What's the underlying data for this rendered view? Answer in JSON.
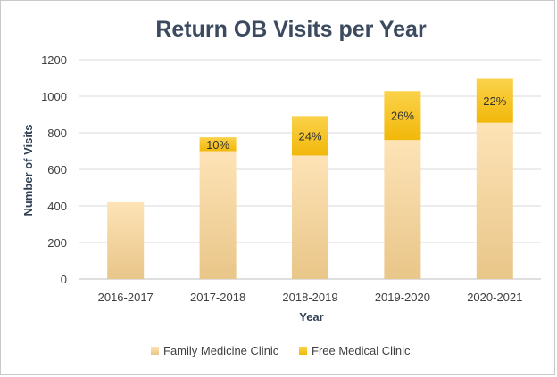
{
  "chart_data": {
    "type": "bar",
    "stacked": true,
    "title": "Return OB Visits per Year",
    "xlabel": "Year",
    "ylabel": "Number of Visits",
    "ylim": [
      0,
      1200
    ],
    "yticks": [
      0,
      200,
      400,
      600,
      800,
      1000,
      1200
    ],
    "grid": true,
    "legend_position": "bottom",
    "categories": [
      "2016-2017",
      "2017-2018",
      "2018-2019",
      "2019-2020",
      "2020-2021"
    ],
    "series": [
      {
        "name": "Family Medicine Clinic",
        "values": [
          420,
          700,
          676,
          760,
          855
        ],
        "color": "#fcdcaa"
      },
      {
        "name": "Free Medical Clinic",
        "values": [
          0,
          75,
          215,
          268,
          240
        ],
        "color": "#f7c31a"
      }
    ],
    "data_labels": [
      "",
      "10%",
      "24%",
      "26%",
      "22%"
    ]
  }
}
